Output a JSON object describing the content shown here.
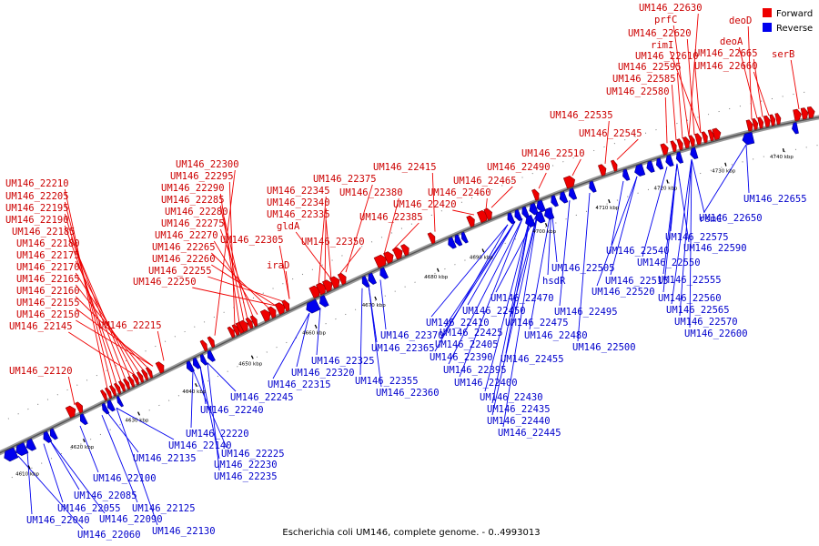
{
  "title": "Escherichia coli UM146, complete genome. - 0..4993013",
  "legend": [
    {
      "name": "Forward",
      "color": "#ee0000"
    },
    {
      "name": "Reverse",
      "color": "#0000ee"
    }
  ],
  "ticks": [
    "4610 kbp",
    "4620 kbp",
    "4630 kbp",
    "4640 kbp",
    "4650 kbp",
    "4660 kbp",
    "4670 kbp",
    "4680 kbp",
    "4690 kbp",
    "4700 kbp",
    "4710 kbp",
    "4720 kbp",
    "4730 kbp",
    "4740 kbp"
  ],
  "forward_labels": [
    "UM146_22210",
    "UM146_22205",
    "UM146_22195",
    "UM146_22190",
    "UM146_22185",
    "UM146_22180",
    "UM146_22175",
    "UM146_22170",
    "UM146_22165",
    "UM146_22160",
    "UM146_22155",
    "UM146_22150",
    "UM146_22145",
    "UM146_22215",
    "UM146_22120",
    "UM146_22300",
    "UM146_22295",
    "UM146_22290",
    "UM146_22285",
    "UM146_22280",
    "UM146_22275",
    "UM146_22270",
    "UM146_22265",
    "UM146_22260",
    "UM146_22255",
    "UM146_22250",
    "UM146_22305",
    "iraD",
    "UM146_22375",
    "UM146_22345",
    "UM146_22340",
    "UM146_22335",
    "gldA",
    "UM146_22350",
    "UM146_22415",
    "UM146_22380",
    "UM146_22420",
    "UM146_22385",
    "UM146_22465",
    "UM146_22460",
    "UM146_22490",
    "UM146_22510",
    "UM146_22535",
    "UM146_22545",
    "UM146_22630",
    "prfC",
    "UM146_22620",
    "rimI",
    "UM146_22610",
    "UM146_22595",
    "UM146_22585",
    "UM146_22580",
    "deoD",
    "deoA",
    "UM146_22665",
    "UM146_22660",
    "serB"
  ],
  "reverse_labels": [
    "UM146_22655",
    "UM146_22650",
    "rsmC",
    "UM146_22575",
    "UM146_22590",
    "UM146_22540",
    "UM146_22550",
    "UM146_22555",
    "UM146_22515",
    "UM146_22560",
    "UM146_22520",
    "UM146_22565",
    "UM146_22570",
    "UM146_22600",
    "UM146_22505",
    "hsdR",
    "UM146_22495",
    "UM146_22500",
    "UM146_22470",
    "UM146_22475",
    "UM146_22480",
    "UM146_22450",
    "UM146_22410",
    "UM146_22425",
    "UM146_22405",
    "UM146_22455",
    "UM146_22390",
    "UM146_22395",
    "UM146_22400",
    "UM146_22430",
    "UM146_22435",
    "UM146_22440",
    "UM146_22445",
    "UM146_22370",
    "UM146_22365",
    "UM146_22355",
    "UM146_22360",
    "UM146_22325",
    "UM146_22320",
    "UM146_22315",
    "UM146_22245",
    "UM146_22240",
    "UM146_22220",
    "UM146_22140",
    "UM146_22225",
    "UM146_22135",
    "UM146_22230",
    "UM146_22235",
    "UM146_22100",
    "UM146_22085",
    "UM146_22055",
    "UM146_22125",
    "UM146_22040",
    "UM146_22090",
    "UM146_22060",
    "UM146_22130"
  ]
}
